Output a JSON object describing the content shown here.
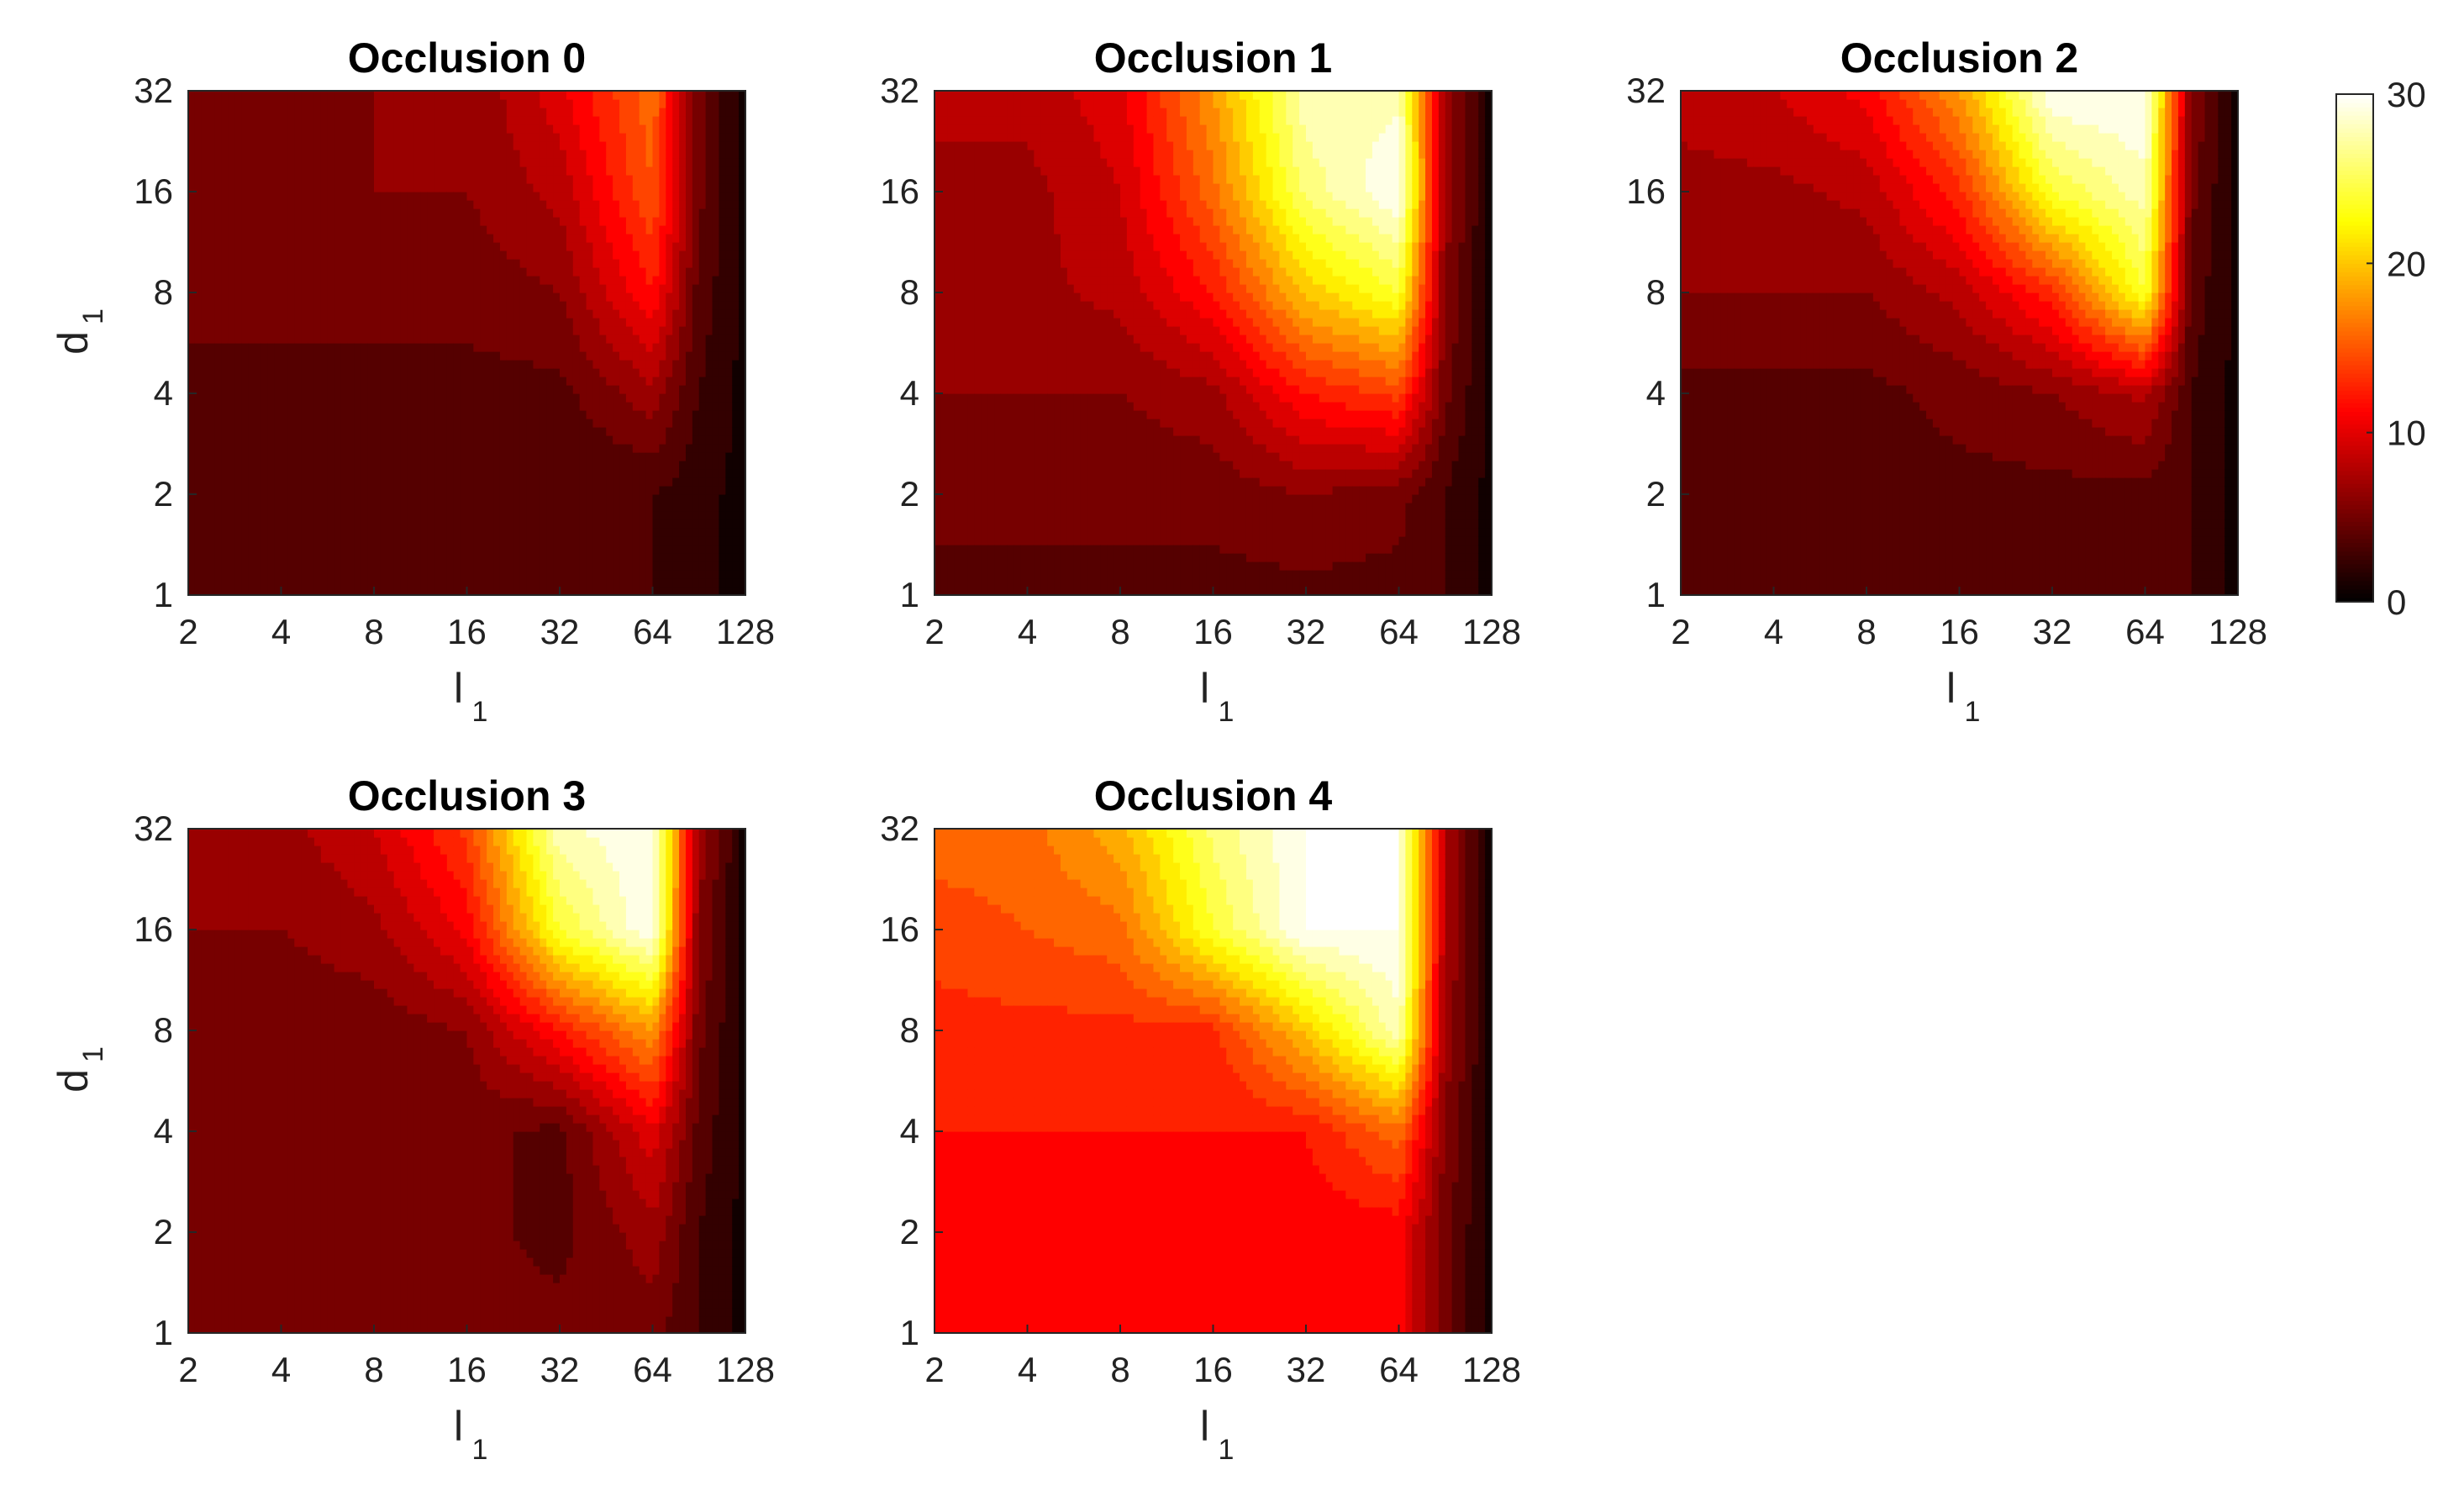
{
  "chart_data": {
    "type": "heatmap",
    "subtype": "filled-contour",
    "colormap": "hot",
    "panels": [
      {
        "title": "Occlusion 0",
        "xlabel": "l",
        "xlabel_sub": "1",
        "ylabel": "d",
        "ylabel_sub": "1",
        "z": [
          [
            4,
            4,
            4,
            4,
            3,
            3,
            2,
            1
          ],
          [
            3,
            3,
            4,
            4,
            3,
            3,
            2,
            1
          ],
          [
            4,
            4,
            4,
            4,
            4,
            7,
            3,
            1
          ],
          [
            5,
            5,
            5,
            5,
            6,
            12,
            4,
            1
          ],
          [
            5,
            5,
            6,
            6,
            8,
            15,
            5,
            1
          ],
          [
            6,
            6,
            6,
            6,
            10,
            16,
            5,
            1
          ]
        ]
      },
      {
        "title": "Occlusion 1",
        "xlabel": "l",
        "xlabel_sub": "1",
        "ylabel": "d",
        "ylabel_sub": "1",
        "z": [
          [
            4,
            4,
            4,
            4,
            4,
            4,
            3,
            1
          ],
          [
            5,
            5,
            5,
            5,
            6,
            5,
            3,
            1
          ],
          [
            6,
            6,
            6,
            7,
            12,
            14,
            5,
            1
          ],
          [
            7,
            7,
            8,
            12,
            20,
            24,
            6,
            1
          ],
          [
            7,
            7,
            9,
            16,
            26,
            30,
            7,
            1
          ],
          [
            8,
            8,
            10,
            18,
            28,
            28,
            7,
            1
          ]
        ]
      },
      {
        "title": "Occlusion 2",
        "xlabel": "l",
        "xlabel_sub": "1",
        "ylabel": "d",
        "ylabel_sub": "1",
        "z": [
          [
            4,
            4,
            4,
            4,
            4,
            4,
            3,
            1
          ],
          [
            4,
            4,
            4,
            4,
            4,
            4,
            3,
            1
          ],
          [
            4,
            4,
            4,
            5,
            6,
            8,
            3,
            1
          ],
          [
            6,
            6,
            6,
            8,
            13,
            24,
            4,
            1
          ],
          [
            7,
            7,
            8,
            13,
            24,
            28,
            5,
            1
          ],
          [
            8,
            9,
            11,
            18,
            30,
            30,
            6,
            1
          ]
        ]
      },
      {
        "title": "Occlusion 3",
        "xlabel": "l",
        "xlabel_sub": "1",
        "ylabel": "d",
        "ylabel_sub": "1",
        "z": [
          [
            5,
            5,
            5,
            5,
            5,
            5,
            3,
            1
          ],
          [
            5,
            5,
            5,
            5,
            4,
            7,
            3,
            1
          ],
          [
            5,
            5,
            5,
            5,
            4,
            10,
            4,
            1
          ],
          [
            5,
            5,
            5,
            6,
            12,
            18,
            5,
            1
          ],
          [
            6,
            6,
            7,
            11,
            24,
            30,
            6,
            1
          ],
          [
            7,
            7,
            9,
            14,
            28,
            30,
            7,
            1
          ]
        ]
      },
      {
        "title": "Occlusion 4",
        "xlabel": "l",
        "xlabel_sub": "1",
        "ylabel": "d",
        "ylabel_sub": "1",
        "z": [
          [
            11,
            11,
            11,
            11,
            11,
            11,
            5,
            1
          ],
          [
            11,
            11,
            11,
            11,
            11,
            11,
            5,
            1
          ],
          [
            12,
            12,
            12,
            12,
            12,
            16,
            6,
            1
          ],
          [
            13,
            13,
            13,
            13,
            20,
            28,
            7,
            1
          ],
          [
            14,
            15,
            16,
            24,
            30,
            30,
            8,
            1
          ],
          [
            16,
            16,
            19,
            26,
            30,
            30,
            8,
            1
          ]
        ]
      }
    ],
    "x": [
      "2",
      "4",
      "8",
      "16",
      "32",
      "64",
      "128"
    ],
    "x_values": [
      2,
      4,
      8,
      16,
      32,
      64,
      90,
      128
    ],
    "y": [
      "1",
      "2",
      "4",
      "8",
      "16",
      "32"
    ],
    "y_values": [
      1,
      2,
      4,
      8,
      16,
      32
    ],
    "zlim": [
      0,
      30
    ],
    "colorbar": {
      "ticks": [
        "0",
        "10",
        "20",
        "30"
      ],
      "tick_values": [
        0,
        10,
        20,
        30
      ]
    }
  }
}
